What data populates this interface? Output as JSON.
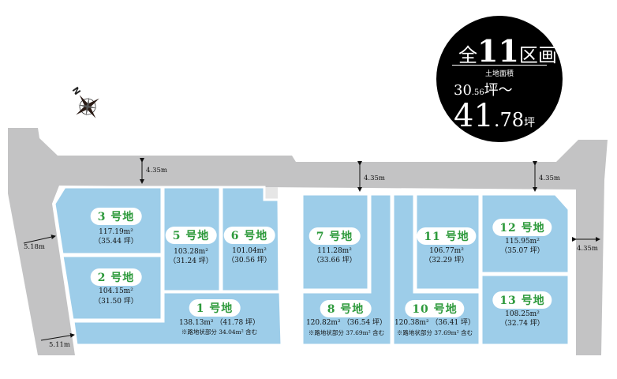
{
  "badge": {
    "prefix": "全",
    "count": "11",
    "suffix": "区画",
    "subtitle": "土地面積",
    "min_int": "30",
    "min_dec": ".56",
    "min_unit": "坪～",
    "max_int": "41",
    "max_dec": ".78",
    "max_unit": "坪"
  },
  "compass": {
    "north_label": "N"
  },
  "dimensions": {
    "road_top_left": "4.35m",
    "road_top_mid": "4.35m",
    "road_top_right": "4.35m",
    "road_right": "4.35m",
    "road_left_upper": "5.18m",
    "road_left_lower": "5.11m"
  },
  "colors": {
    "lot": "#9dcde9",
    "road": "#c3c3c4",
    "label": "#2e9a3c"
  },
  "lots": [
    {
      "label": "1 号地",
      "area": "138.13m² （41.78 坪）",
      "note": "※路地状部分 34.04m² 含む"
    },
    {
      "label": "2 号地",
      "area": "104.15m²",
      "tsubo": "（31.50 坪）"
    },
    {
      "label": "3 号地",
      "area": "117.19m²",
      "tsubo": "（35.44 坪）"
    },
    {
      "label": "5 号地",
      "area": "103.28m²",
      "tsubo": "（31.24 坪）"
    },
    {
      "label": "6 号地",
      "area": "101.04m²",
      "tsubo": "（30.56 坪）"
    },
    {
      "label": "7 号地",
      "area": "111.28m²",
      "tsubo": "（33.66 坪）"
    },
    {
      "label": "8 号地",
      "area": "120.82m² （36.54 坪）",
      "note": "※路地状部分 37.69m² 含む"
    },
    {
      "label": "10 号地",
      "area": "120.38m² （36.41 坪）",
      "note": "※路地状部分 37.69m² 含む"
    },
    {
      "label": "11 号地",
      "area": "106.77m²",
      "tsubo": "（32.29 坪）"
    },
    {
      "label": "12 号地",
      "area": "115.95m²",
      "tsubo": "（35.07 坪）"
    },
    {
      "label": "13 号地",
      "area": "108.25m²",
      "tsubo": "（32.74 坪）"
    }
  ]
}
